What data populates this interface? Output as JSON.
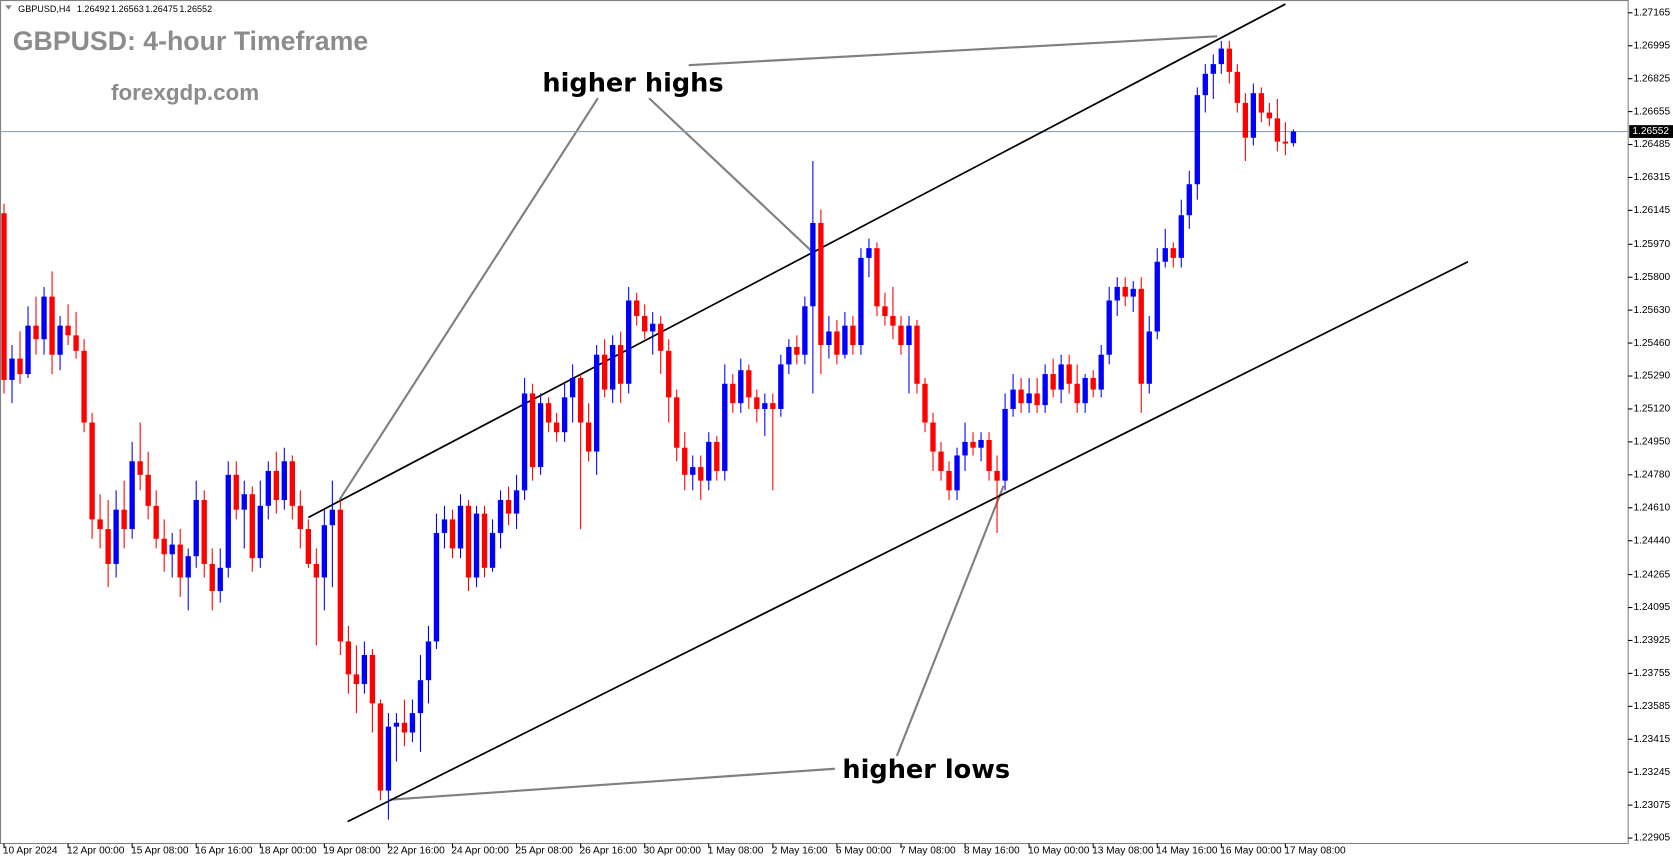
{
  "chart_data": {
    "type": "candlestick",
    "symbol": "GBPUSD,H4",
    "ohlc": [
      1.26492,
      1.26563,
      1.26475,
      1.26552
    ],
    "title": "GBPUSD: 4-hour Timeframe",
    "subtitle": "forexgdp.com",
    "annotations": [
      "higher highs",
      "higher lows"
    ],
    "up_color": "#0000ff",
    "down_color": "#ff0000",
    "current_price": 1.26552,
    "xlim": [
      -0.5,
      202.8
    ],
    "ylim": [
      1.22877,
      1.27231
    ],
    "xticks": [
      {
        "value": 0,
        "label": "10 Apr 2024"
      },
      {
        "value": 8,
        "label": "12 Apr 00:00"
      },
      {
        "value": 16,
        "label": "15 Apr 08:00"
      },
      {
        "value": 24,
        "label": "16 Apr 16:00"
      },
      {
        "value": 32,
        "label": "18 Apr 00:00"
      },
      {
        "value": 40,
        "label": "19 Apr 08:00"
      },
      {
        "value": 48,
        "label": "22 Apr 16:00"
      },
      {
        "value": 56,
        "label": "24 Apr 00:00"
      },
      {
        "value": 64,
        "label": "25 Apr 08:00"
      },
      {
        "value": 72,
        "label": "26 Apr 16:00"
      },
      {
        "value": 80,
        "label": "30 Apr 00:00"
      },
      {
        "value": 88,
        "label": "1 May 08:00"
      },
      {
        "value": 96,
        "label": "2 May 16:00"
      },
      {
        "value": 104,
        "label": "6 May 00:00"
      },
      {
        "value": 112,
        "label": "7 May 08:00"
      },
      {
        "value": 120,
        "label": "8 May 16:00"
      },
      {
        "value": 128,
        "label": "10 May 00:00"
      },
      {
        "value": 136,
        "label": "13 May 08:00"
      },
      {
        "value": 144,
        "label": "14 May 16:00"
      },
      {
        "value": 152,
        "label": "16 May 00:00"
      },
      {
        "value": 160,
        "label": "17 May 08:00"
      }
    ],
    "yticks": [
      1.27165,
      1.26995,
      1.26825,
      1.26655,
      1.26485,
      1.26315,
      1.26145,
      {
        "value": 1.2597,
        "label": "1.25970"
      },
      {
        "value": 1.258,
        "label": "1.25800"
      },
      {
        "value": 1.2563,
        "label": "1.25630"
      },
      {
        "value": 1.2546,
        "label": "1.25460"
      },
      {
        "value": 1.2529,
        "label": "1.25290"
      },
      {
        "value": 1.2512,
        "label": "1.25120"
      },
      {
        "value": 1.2495,
        "label": "1.24950"
      },
      {
        "value": 1.2478,
        "label": "1.24780"
      },
      {
        "value": 1.2461,
        "label": "1.24610"
      },
      {
        "value": 1.2444,
        "label": "1.24440"
      },
      1.24265,
      1.24095,
      1.23925,
      1.23755,
      1.23585,
      1.23415,
      1.23245,
      1.23075,
      1.22905
    ],
    "trendlines": [
      {
        "x": [
          38,
          160
        ],
        "y": [
          1.2456,
          1.2721
        ]
      },
      {
        "x": [
          42.9,
          182.8
        ],
        "y": [
          1.2299,
          1.2588
        ]
      }
    ],
    "candles": [
      [
        1.2613,
        1.2618,
        1.252,
        1.2527
      ],
      [
        1.2527,
        1.2545,
        1.2515,
        1.2538
      ],
      [
        1.2538,
        1.2552,
        1.2525,
        1.253
      ],
      [
        1.253,
        1.2565,
        1.2528,
        1.2555
      ],
      [
        1.2555,
        1.257,
        1.254,
        1.2548
      ],
      [
        1.2548,
        1.2575,
        1.254,
        1.257
      ],
      [
        1.257,
        1.2583,
        1.253,
        1.254
      ],
      [
        1.254,
        1.256,
        1.2532,
        1.2555
      ],
      [
        1.2555,
        1.2566,
        1.2545,
        1.255
      ],
      [
        1.255,
        1.2562,
        1.2538,
        1.2542
      ],
      [
        1.2542,
        1.2548,
        1.25,
        1.2505
      ],
      [
        1.2505,
        1.251,
        1.2445,
        1.2455
      ],
      [
        1.2455,
        1.2468,
        1.244,
        1.245
      ],
      [
        1.245,
        1.2465,
        1.242,
        1.2432
      ],
      [
        1.2432,
        1.247,
        1.2425,
        1.246
      ],
      [
        1.246,
        1.2475,
        1.244,
        1.245
      ],
      [
        1.245,
        1.2495,
        1.2445,
        1.2485
      ],
      [
        1.2485,
        1.2505,
        1.247,
        1.2478
      ],
      [
        1.2478,
        1.249,
        1.2455,
        1.2462
      ],
      [
        1.2462,
        1.247,
        1.244,
        1.2445
      ],
      [
        1.2445,
        1.2455,
        1.2428,
        1.2437
      ],
      [
        1.2437,
        1.2448,
        1.2425,
        1.2442
      ],
      [
        1.2442,
        1.245,
        1.2415,
        1.2425
      ],
      [
        1.2425,
        1.244,
        1.2408,
        1.2436
      ],
      [
        1.2436,
        1.2475,
        1.243,
        1.2465
      ],
      [
        1.2465,
        1.247,
        1.2425,
        1.2432
      ],
      [
        1.2432,
        1.244,
        1.2408,
        1.2418
      ],
      [
        1.2418,
        1.244,
        1.2412,
        1.243
      ],
      [
        1.243,
        1.2485,
        1.2425,
        1.2478
      ],
      [
        1.2478,
        1.2485,
        1.2455,
        1.246
      ],
      [
        1.246,
        1.2475,
        1.244,
        1.2468
      ],
      [
        1.2468,
        1.2472,
        1.2428,
        1.2435
      ],
      [
        1.2435,
        1.2475,
        1.243,
        1.2462
      ],
      [
        1.2462,
        1.2485,
        1.2455,
        1.248
      ],
      [
        1.248,
        1.249,
        1.2458,
        1.2465
      ],
      [
        1.2465,
        1.2492,
        1.246,
        1.2485
      ],
      [
        1.2485,
        1.2488,
        1.2455,
        1.2462
      ],
      [
        1.2462,
        1.247,
        1.244,
        1.245
      ],
      [
        1.245,
        1.2455,
        1.243,
        1.2432
      ],
      [
        1.2432,
        1.244,
        1.239,
        1.2425
      ],
      [
        1.2425,
        1.246,
        1.2408,
        1.2452
      ],
      [
        1.2452,
        1.2475,
        1.242,
        1.246
      ],
      [
        1.246,
        1.2465,
        1.2385,
        1.2392
      ],
      [
        1.2392,
        1.24,
        1.2365,
        1.2375
      ],
      [
        1.2375,
        1.239,
        1.2355,
        1.237
      ],
      [
        1.237,
        1.2392,
        1.2365,
        1.2385
      ],
      [
        1.2385,
        1.2388,
        1.2345,
        1.236
      ],
      [
        1.236,
        1.2362,
        1.231,
        1.2315
      ],
      [
        1.2315,
        1.2355,
        1.23,
        1.2348
      ],
      [
        1.2348,
        1.2355,
        1.233,
        1.235
      ],
      [
        1.235,
        1.2362,
        1.2338,
        1.2345
      ],
      [
        1.2345,
        1.2362,
        1.234,
        1.2355
      ],
      [
        1.2355,
        1.2385,
        1.2335,
        1.2372
      ],
      [
        1.2372,
        1.24,
        1.236,
        1.2392
      ],
      [
        1.2392,
        1.2458,
        1.2388,
        1.2448
      ],
      [
        1.2448,
        1.2462,
        1.244,
        1.2455
      ],
      [
        1.2455,
        1.246,
        1.2435,
        1.244
      ],
      [
        1.244,
        1.2468,
        1.2435,
        1.2462
      ],
      [
        1.2462,
        1.2465,
        1.2418,
        1.2425
      ],
      [
        1.2425,
        1.2462,
        1.242,
        1.2458
      ],
      [
        1.2458,
        1.2462,
        1.2425,
        1.243
      ],
      [
        1.243,
        1.2455,
        1.2428,
        1.2448
      ],
      [
        1.2448,
        1.247,
        1.244,
        1.2465
      ],
      [
        1.2465,
        1.2472,
        1.2452,
        1.2458
      ],
      [
        1.2458,
        1.2478,
        1.245,
        1.247
      ],
      [
        1.247,
        1.2528,
        1.2465,
        1.252
      ],
      [
        1.252,
        1.2525,
        1.2475,
        1.2482
      ],
      [
        1.2482,
        1.252,
        1.2478,
        1.2515
      ],
      [
        1.2515,
        1.2518,
        1.25,
        1.2505
      ],
      [
        1.2505,
        1.251,
        1.2495,
        1.25
      ],
      [
        1.25,
        1.2525,
        1.2495,
        1.2518
      ],
      [
        1.2518,
        1.2535,
        1.2505,
        1.2528
      ],
      [
        1.2528,
        1.253,
        1.245,
        1.2505
      ],
      [
        1.2505,
        1.2515,
        1.2485,
        1.249
      ],
      [
        1.249,
        1.2545,
        1.2478,
        1.254
      ],
      [
        1.254,
        1.2548,
        1.2518,
        1.2522
      ],
      [
        1.2522,
        1.255,
        1.2515,
        1.2545
      ],
      [
        1.2545,
        1.2552,
        1.2515,
        1.2525
      ],
      [
        1.2525,
        1.2575,
        1.252,
        1.2568
      ],
      [
        1.2568,
        1.2572,
        1.2555,
        1.256
      ],
      [
        1.256,
        1.2566,
        1.2548,
        1.2552
      ],
      [
        1.2552,
        1.2562,
        1.254,
        1.2556
      ],
      [
        1.2556,
        1.256,
        1.253,
        1.2542
      ],
      [
        1.2542,
        1.2548,
        1.2505,
        1.2518
      ],
      [
        1.2518,
        1.2522,
        1.2485,
        1.2492
      ],
      [
        1.2492,
        1.25,
        1.247,
        1.2478
      ],
      [
        1.2478,
        1.2488,
        1.247,
        1.2482
      ],
      [
        1.2482,
        1.2488,
        1.2465,
        1.2475
      ],
      [
        1.2475,
        1.25,
        1.247,
        1.2495
      ],
      [
        1.2495,
        1.2498,
        1.2475,
        1.248
      ],
      [
        1.248,
        1.2535,
        1.2475,
        1.2525
      ],
      [
        1.2525,
        1.253,
        1.251,
        1.2515
      ],
      [
        1.2515,
        1.2538,
        1.251,
        1.2532
      ],
      [
        1.2532,
        1.2535,
        1.2512,
        1.2518
      ],
      [
        1.2518,
        1.2522,
        1.2505,
        1.2512
      ],
      [
        1.2512,
        1.252,
        1.2498,
        1.2515
      ],
      [
        1.2515,
        1.252,
        1.247,
        1.2512
      ],
      [
        1.2512,
        1.254,
        1.2508,
        1.2535
      ],
      [
        1.2535,
        1.2548,
        1.253,
        1.2544
      ],
      [
        1.2544,
        1.255,
        1.2535,
        1.254
      ],
      [
        1.254,
        1.257,
        1.2535,
        1.2565
      ],
      [
        1.2565,
        1.264,
        1.252,
        1.2608
      ],
      [
        1.2608,
        1.2615,
        1.253,
        1.2545
      ],
      [
        1.2545,
        1.256,
        1.2538,
        1.2552
      ],
      [
        1.2552,
        1.2558,
        1.2535,
        1.254
      ],
      [
        1.254,
        1.2562,
        1.2538,
        1.2555
      ],
      [
        1.2555,
        1.256,
        1.254,
        1.2545
      ],
      [
        1.2545,
        1.2595,
        1.254,
        1.259
      ],
      [
        1.259,
        1.26,
        1.258,
        1.2595
      ],
      [
        1.2595,
        1.2598,
        1.256,
        1.2565
      ],
      [
        1.2565,
        1.2572,
        1.2555,
        1.256
      ],
      [
        1.256,
        1.2575,
        1.2548,
        1.2555
      ],
      [
        1.2555,
        1.256,
        1.254,
        1.2545
      ],
      [
        1.2545,
        1.256,
        1.252,
        1.2555
      ],
      [
        1.2555,
        1.2558,
        1.252,
        1.2525
      ],
      [
        1.2525,
        1.2528,
        1.25,
        1.2505
      ],
      [
        1.2505,
        1.251,
        1.248,
        1.249
      ],
      [
        1.249,
        1.2495,
        1.2475,
        1.248
      ],
      [
        1.248,
        1.2485,
        1.2465,
        1.247
      ],
      [
        1.247,
        1.2492,
        1.2465,
        1.2488
      ],
      [
        1.2488,
        1.2505,
        1.248,
        1.2495
      ],
      [
        1.2495,
        1.25,
        1.2488,
        1.2492
      ],
      [
        1.2492,
        1.25,
        1.2485,
        1.2496
      ],
      [
        1.2496,
        1.25,
        1.2475,
        1.248
      ],
      [
        1.248,
        1.2488,
        1.2448,
        1.2475
      ],
      [
        1.2475,
        1.252,
        1.247,
        1.2512
      ],
      [
        1.2512,
        1.253,
        1.2508,
        1.2522
      ],
      [
        1.2522,
        1.2528,
        1.251,
        1.2515
      ],
      [
        1.2515,
        1.2528,
        1.251,
        1.252
      ],
      [
        1.252,
        1.2528,
        1.251,
        1.2514
      ],
      [
        1.2514,
        1.2535,
        1.251,
        1.253
      ],
      [
        1.253,
        1.2538,
        1.2518,
        1.2522
      ],
      [
        1.2522,
        1.254,
        1.2515,
        1.2535
      ],
      [
        1.2535,
        1.254,
        1.252,
        1.2525
      ],
      [
        1.2525,
        1.2535,
        1.251,
        1.2515
      ],
      [
        1.2515,
        1.253,
        1.251,
        1.2528
      ],
      [
        1.2528,
        1.2532,
        1.2518,
        1.2522
      ],
      [
        1.2522,
        1.2545,
        1.2518,
        1.254
      ],
      [
        1.254,
        1.2575,
        1.2535,
        1.2568
      ],
      [
        1.2568,
        1.258,
        1.256,
        1.2575
      ],
      [
        1.2575,
        1.258,
        1.2565,
        1.257
      ],
      [
        1.257,
        1.2578,
        1.2562,
        1.2574
      ],
      [
        1.2574,
        1.258,
        1.251,
        1.2525
      ],
      [
        1.2525,
        1.256,
        1.252,
        1.2552
      ],
      [
        1.2552,
        1.2595,
        1.2548,
        1.2588
      ],
      [
        1.2588,
        1.2605,
        1.2585,
        1.2595
      ],
      [
        1.2595,
        1.2598,
        1.2585,
        1.259
      ],
      [
        1.259,
        1.262,
        1.2585,
        1.2612
      ],
      [
        1.2612,
        1.2635,
        1.2605,
        1.2628
      ],
      [
        1.2628,
        1.2678,
        1.262,
        1.2674
      ],
      [
        1.2674,
        1.269,
        1.2665,
        1.2685
      ],
      [
        1.2685,
        1.2695,
        1.2672,
        1.269
      ],
      [
        1.269,
        1.2702,
        1.2685,
        1.2698
      ],
      [
        1.2698,
        1.2702,
        1.268,
        1.2686
      ],
      [
        1.2686,
        1.269,
        1.2665,
        1.267
      ],
      [
        1.267,
        1.2675,
        1.264,
        1.2652
      ],
      [
        1.2652,
        1.268,
        1.2648,
        1.2675
      ],
      [
        1.2675,
        1.2678,
        1.266,
        1.2665
      ],
      [
        1.2665,
        1.267,
        1.2658,
        1.2662
      ],
      [
        1.2662,
        1.2672,
        1.2645,
        1.265
      ],
      [
        1.265,
        1.266,
        1.2643,
        1.2649
      ],
      [
        1.26492,
        1.26563,
        1.26475,
        1.26552
      ]
    ]
  }
}
